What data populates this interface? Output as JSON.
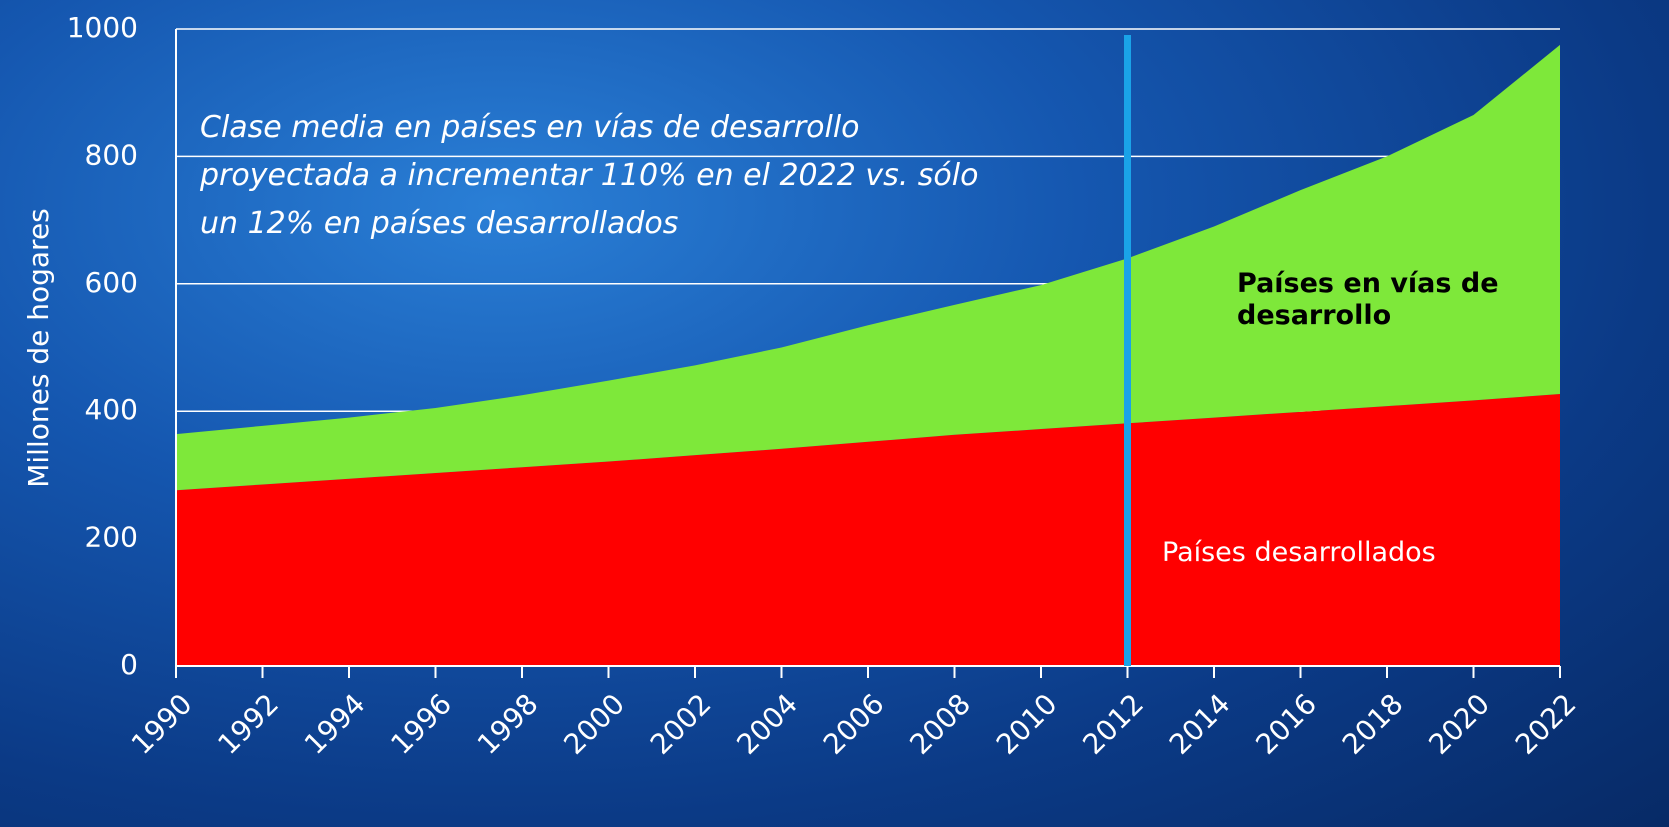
{
  "chart_data": {
    "type": "stacked_area",
    "y_label": "Millones de hogares",
    "annotation_lines": [
      "Clase media en países en vías de desarrollo",
      "proyectada a incrementar 110% en el 2022 vs. sólo",
      "un 12% en países desarrollados"
    ],
    "x": [
      1990,
      1992,
      1994,
      1996,
      1998,
      2000,
      2002,
      2004,
      2006,
      2008,
      2010,
      2012,
      2014,
      2016,
      2018,
      2020,
      2022
    ],
    "series": [
      {
        "name": "Países desarrollados",
        "color": "#ff0000",
        "values": [
          276,
          285,
          294,
          303,
          312,
          321,
          331,
          341,
          352,
          363,
          372,
          381,
          390,
          399,
          408,
          417,
          427
        ]
      },
      {
        "name": "Países en vías de desarrollo",
        "color": "#7ee83a",
        "values": [
          88,
          92,
          96,
          102,
          113,
          127,
          141,
          159,
          183,
          204,
          226,
          259,
          300,
          348,
          392,
          448,
          548
        ]
      }
    ],
    "xlim": [
      1990,
      2022
    ],
    "xticks": [
      1990,
      1992,
      1994,
      1996,
      1998,
      2000,
      2002,
      2004,
      2006,
      2008,
      2010,
      2012,
      2014,
      2016,
      2018,
      2020,
      2022
    ],
    "ylim": [
      0,
      1000
    ],
    "yticks": [
      0,
      200,
      400,
      600,
      800,
      1000
    ],
    "grid": true,
    "vline": 2012,
    "vline_color": "#1aa3e8"
  }
}
